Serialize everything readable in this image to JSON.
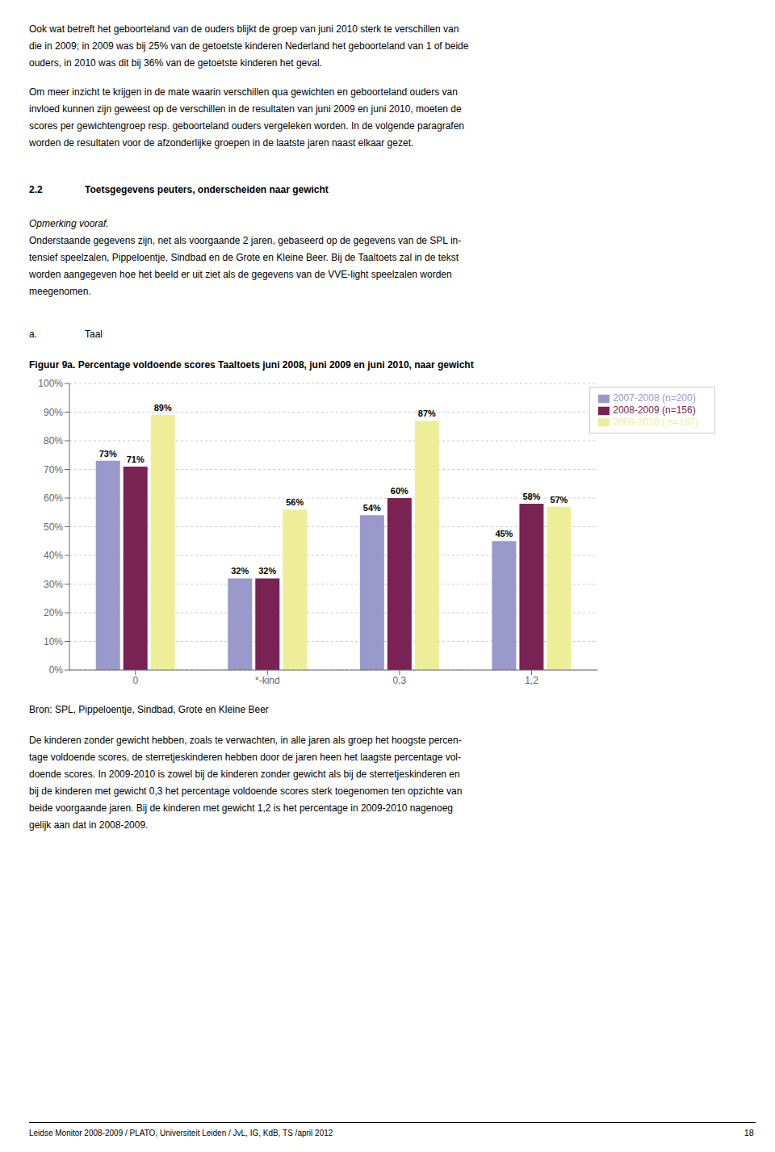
{
  "chart_data": {
    "type": "bar",
    "title": "Figuur 9a. Percentage voldoende scores Taaltoets juni 2008, juni 2009 en juni 2010, naar gewicht",
    "categories": [
      "0",
      "*-kind",
      "0,3",
      "1,2"
    ],
    "series": [
      {
        "name": "2007-2008 (n=200)",
        "color": "#9999cc",
        "values": [
          73,
          32,
          54,
          45
        ],
        "value_labels": [
          "73%",
          "32%",
          "54%",
          "45%"
        ]
      },
      {
        "name": "2008-2009 (n=156)",
        "color": "#7b2255",
        "values": [
          71,
          32,
          60,
          58
        ],
        "value_labels": [
          "71%",
          "32%",
          "60%",
          "58%"
        ]
      },
      {
        "name": "2009-2010 ( n=187)",
        "color": "#eeee99",
        "values": [
          89,
          56,
          87,
          57
        ],
        "value_labels": [
          "89%",
          "56%",
          "87%",
          "57%"
        ]
      }
    ],
    "ylim": [
      0,
      100
    ],
    "yticks": [
      {
        "value": 0,
        "label": "0%"
      },
      {
        "value": 10,
        "label": "10%"
      },
      {
        "value": 20,
        "label": "20%"
      },
      {
        "value": 30,
        "label": "30%"
      },
      {
        "value": 40,
        "label": "40%"
      },
      {
        "value": 50,
        "label": "50%"
      },
      {
        "value": 60,
        "label": "60%"
      },
      {
        "value": 70,
        "label": "70%"
      },
      {
        "value": 80,
        "label": "80%"
      },
      {
        "value": 90,
        "label": "90%"
      },
      {
        "value": 100,
        "label": "100%"
      }
    ],
    "grid": true,
    "legend": "upper right",
    "data_labels": true,
    "annotations": [
      "Ook wat betreft het geboorteland van de ouders blijkt de groep van juni 2010 sterk te verschillen van",
      "die in 2009; in 2009 was bij 25% van de getoetste kinderen Nederland het geboorteland van 1 of beide",
      "ouders, in 2010 was dit bij 36% van de getoetste kinderen het geval.",
      "Om meer inzicht te krijgen in de mate waarin verschillen qua gewichten en geboorteland ouders van",
      "invloed kunnen zijn geweest op de verschillen in de resultaten van juni 2009 en juni 2010, moeten de",
      "scores per gewichtengroep resp. geboorteland ouders vergeleken worden. In de volgende paragrafen",
      "worden de resultaten voor de afzonderlijke groepen in de laatste jaren naast elkaar gezet.",
      "2.2",
      "Toetsgegevens peuters, onderscheiden naar gewicht",
      "Opmerking vooraf.",
      "Onderstaande gegevens zijn, net als voorgaande 2 jaren, gebaseerd op de gegevens van de SPL in-",
      "tensief speelzalen, Pippeloentje, Sindbad en de Grote en Kleine Beer. Bij de Taaltoets zal in de tekst",
      "worden aangegeven hoe het beeld er uit ziet als de gegevens van de VVE-light speelzalen worden",
      "meegenomen.",
      "a.",
      "Taal",
      "Bron: SPL, Pippeloentje, Sindbad, Grote en Kleine Beer",
      "De kinderen zonder gewicht hebben, zoals te verwachten, in alle jaren als groep het hoogste percen-",
      "tage voldoende scores, de sterretjeskinderen hebben door de jaren heen het laagste percentage vol-",
      "doende scores. In 2009-2010 is zowel bij de kinderen zonder gewicht als bij de sterretjeskinderen en",
      "bij de kinderen met gewicht 0,3 het percentage voldoende scores sterk toegenomen ten opzichte van",
      "beide voorgaande jaren. Bij de kinderen met gewicht 1,2 is het percentage in 2009-2010 nagenoeg",
      "gelijk aan dat in 2008-2009.",
      "Leidse Monitor 2008-2009 / PLATO, Universiteit Leiden / JvL, IG, KdB, TS /april 2012",
      "18"
    ]
  }
}
